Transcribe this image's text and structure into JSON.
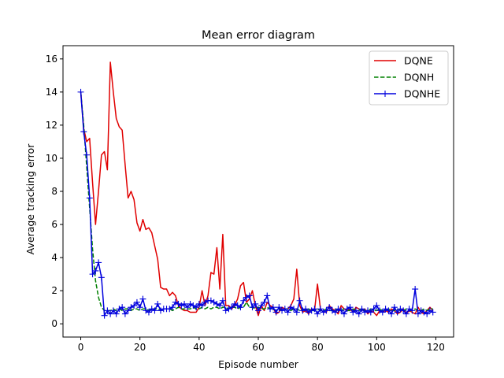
{
  "chart_data": {
    "type": "line",
    "title": "Mean error diagram",
    "xlabel": "Episode number",
    "ylabel": "Average tracking error",
    "xlim": [
      -6,
      126
    ],
    "ylim": [
      -0.8,
      16.8
    ],
    "xticks": [
      0,
      20,
      40,
      60,
      80,
      100,
      120
    ],
    "yticks": [
      0,
      2,
      4,
      6,
      8,
      10,
      12,
      14,
      16
    ],
    "grid": false,
    "legend_position": "top-right",
    "series": [
      {
        "name": "DQNE",
        "color": "#e00000",
        "style": "solid",
        "marker": "none",
        "values": [
          14.0,
          11.8,
          11.0,
          11.2,
          8.5,
          6.0,
          8.0,
          10.2,
          10.4,
          9.3,
          15.8,
          14.0,
          12.4,
          11.9,
          11.7,
          9.6,
          7.6,
          8.0,
          7.5,
          6.1,
          5.6,
          6.3,
          5.7,
          5.8,
          5.5,
          4.7,
          3.9,
          2.2,
          2.1,
          2.1,
          1.7,
          1.9,
          1.7,
          1.1,
          0.9,
          0.8,
          0.8,
          0.7,
          0.7,
          0.7,
          1.0,
          2.0,
          1.1,
          1.7,
          3.1,
          3.0,
          4.6,
          2.1,
          5.4,
          1.1,
          1.1,
          0.9,
          1.1,
          1.5,
          2.3,
          2.5,
          1.3,
          1.5,
          2.0,
          1.1,
          0.5,
          1.1,
          0.8,
          1.3,
          1.1,
          1.0,
          0.6,
          0.7,
          1.0,
          0.9,
          0.9,
          1.1,
          1.5,
          3.3,
          1.1,
          0.7,
          0.8,
          0.6,
          0.9,
          0.8,
          2.4,
          0.9,
          0.7,
          0.7,
          1.1,
          0.9,
          0.8,
          0.6,
          1.1,
          0.9,
          0.8,
          0.9,
          0.7,
          1.0,
          0.9,
          0.8,
          0.9,
          0.6,
          0.8,
          0.7,
          0.5,
          0.8,
          0.7,
          0.8,
          0.7,
          0.9,
          0.8,
          0.6,
          0.7,
          0.9,
          0.6,
          0.8,
          0.7,
          0.6,
          1.0,
          0.7,
          0.6,
          0.8,
          1.0,
          0.8
        ]
      },
      {
        "name": "DQNH",
        "color": "#008000",
        "style": "dashed",
        "marker": "none",
        "values": [
          14.0,
          12.0,
          9.5,
          7.0,
          4.5,
          2.6,
          1.6,
          1.0,
          0.8,
          0.8,
          0.8,
          0.9,
          0.8,
          0.9,
          0.8,
          0.9,
          0.9,
          0.8,
          0.9,
          0.9,
          0.8,
          0.9,
          0.9,
          0.8,
          0.9,
          0.9,
          0.9,
          0.8,
          0.9,
          0.9,
          0.9,
          0.8,
          0.9,
          1.0,
          0.9,
          0.9,
          0.9,
          0.9,
          1.0,
          0.9,
          0.9,
          1.0,
          0.9,
          1.0,
          0.9,
          1.0,
          1.0,
          0.9,
          1.0,
          1.0,
          0.9,
          1.0,
          1.0,
          0.9,
          1.0,
          1.0,
          1.3,
          1.0,
          1.0,
          0.9,
          1.0,
          0.9,
          0.9,
          1.0,
          0.9,
          0.9,
          0.8,
          0.9,
          0.8,
          0.9,
          0.9,
          0.8,
          0.9,
          0.9,
          0.8,
          0.9,
          0.8,
          0.9,
          0.8,
          0.8,
          0.9,
          0.8,
          0.8,
          0.9,
          0.8,
          0.8,
          0.9,
          0.8,
          0.8,
          0.9,
          0.8,
          0.8,
          0.9,
          0.8,
          0.8,
          0.9,
          0.8,
          0.8,
          0.9,
          0.8,
          0.8,
          0.9,
          0.8,
          0.8,
          0.9,
          0.8,
          0.8,
          0.9,
          0.8,
          0.8,
          0.9,
          0.8,
          0.8,
          0.9,
          0.8,
          0.8,
          0.9,
          0.8,
          0.9,
          0.9
        ]
      },
      {
        "name": "DQNHE",
        "color": "#0000dd",
        "style": "solid",
        "marker": "plus",
        "values": [
          14.0,
          11.6,
          10.2,
          7.6,
          3.0,
          3.2,
          3.7,
          2.8,
          0.5,
          0.8,
          0.6,
          0.8,
          0.6,
          0.9,
          1.0,
          0.6,
          0.8,
          1.0,
          1.1,
          1.3,
          1.0,
          1.5,
          0.8,
          0.7,
          0.9,
          0.8,
          1.2,
          0.8,
          0.9,
          0.9,
          0.9,
          1.0,
          1.3,
          1.2,
          1.1,
          1.2,
          1.0,
          1.2,
          1.1,
          1.0,
          1.2,
          1.1,
          1.3,
          1.4,
          1.4,
          1.3,
          1.2,
          1.1,
          1.4,
          0.8,
          0.9,
          1.0,
          1.2,
          1.1,
          1.0,
          1.4,
          1.6,
          1.7,
          1.0,
          1.2,
          0.8,
          1.1,
          1.3,
          1.7,
          0.9,
          1.0,
          0.7,
          1.0,
          0.8,
          0.9,
          0.7,
          1.0,
          0.9,
          0.7,
          1.4,
          0.8,
          0.9,
          0.7,
          0.8,
          0.9,
          0.6,
          0.9,
          0.7,
          0.8,
          1.0,
          0.8,
          0.7,
          0.9,
          0.8,
          0.6,
          0.9,
          1.0,
          0.7,
          0.8,
          0.6,
          0.9,
          0.7,
          0.8,
          0.7,
          0.9,
          1.1,
          0.8,
          0.7,
          0.9,
          0.8,
          0.6,
          1.0,
          0.7,
          0.9,
          0.8,
          0.6,
          0.9,
          0.8,
          2.1,
          0.6,
          0.8,
          0.7,
          0.6,
          0.8,
          0.7
        ]
      }
    ]
  }
}
